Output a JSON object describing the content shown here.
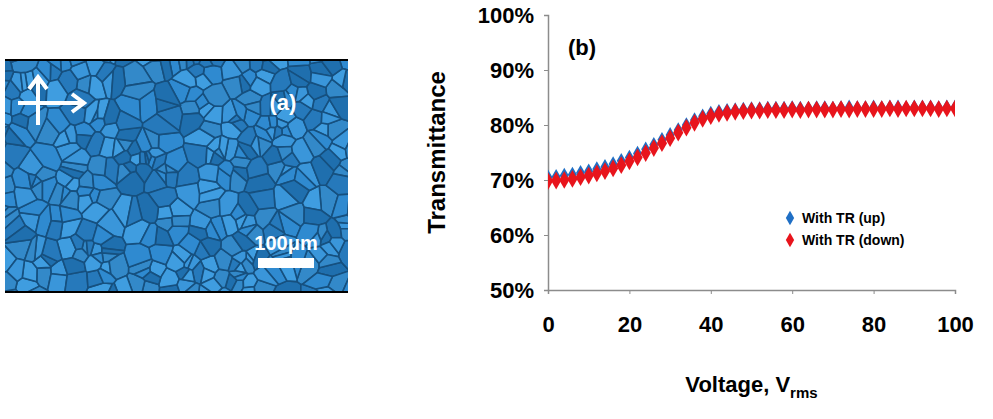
{
  "image_panel": {
    "label": "(a)",
    "scale_bar_label": "100μm"
  },
  "chart_data": {
    "type": "scatter",
    "panel_label": "(b)",
    "xlabel": "Voltage, V",
    "xlabel_sub": "rms",
    "ylabel": "Transmittance",
    "x": [
      0,
      2,
      4,
      6,
      8,
      10,
      12,
      14,
      16,
      18,
      20,
      22,
      24,
      26,
      28,
      30,
      32,
      34,
      36,
      38,
      40,
      42,
      44,
      46,
      48,
      50,
      52,
      54,
      56,
      58,
      60,
      62,
      64,
      66,
      68,
      70,
      72,
      74,
      76,
      78,
      80,
      82,
      84,
      86,
      88,
      90,
      92,
      94,
      96,
      98,
      100
    ],
    "series": [
      {
        "name": "With TR (up)",
        "color": "#1f6fc5",
        "marker": "diamond",
        "values": [
          70.5,
          70.6,
          70.8,
          71.0,
          71.3,
          71.6,
          72.0,
          72.4,
          72.9,
          73.5,
          74.1,
          74.8,
          75.6,
          76.4,
          77.3,
          78.2,
          79.1,
          80.0,
          80.9,
          81.6,
          82.1,
          82.4,
          82.6,
          82.7,
          82.8,
          82.9,
          82.9,
          83,
          83,
          83,
          83.1,
          83,
          83,
          83.1,
          83.1,
          83,
          83.1,
          83.2,
          83.1,
          83.1,
          83.2,
          83.1,
          83.2,
          83.2,
          83.1,
          83.2,
          83.2,
          83.2,
          83.1,
          83.2,
          83.2
        ]
      },
      {
        "name": "With TR (down)",
        "color": "#e8141c",
        "marker": "diamond",
        "values": [
          69.8,
          69.9,
          70.0,
          70.2,
          70.5,
          70.8,
          71.2,
          71.6,
          72.1,
          72.7,
          73.4,
          74.1,
          74.9,
          75.8,
          76.7,
          77.6,
          78.6,
          79.5,
          80.4,
          81.1,
          81.6,
          82.0,
          82.2,
          82.4,
          82.5,
          82.6,
          82.6,
          82.7,
          82.7,
          82.7,
          82.8,
          82.7,
          82.8,
          82.8,
          82.8,
          82.8,
          82.9,
          82.8,
          82.9,
          82.9,
          82.9,
          82.9,
          83.0,
          82.9,
          83.0,
          83.0,
          83.0,
          83.0,
          82.9,
          83.0,
          83.0
        ]
      }
    ],
    "xlim": [
      0,
      100
    ],
    "xticks": [
      0,
      20,
      40,
      60,
      80,
      100
    ],
    "ylim": [
      50,
      100
    ],
    "yticks": [
      {
        "value": 50,
        "label": "50%"
      },
      {
        "value": 60,
        "label": "60%"
      },
      {
        "value": 70,
        "label": "70%"
      },
      {
        "value": 80,
        "label": "80%"
      },
      {
        "value": 90,
        "label": "90%"
      },
      {
        "value": 100,
        "label": "100%"
      }
    ],
    "grid": false,
    "legend": "lower right"
  }
}
